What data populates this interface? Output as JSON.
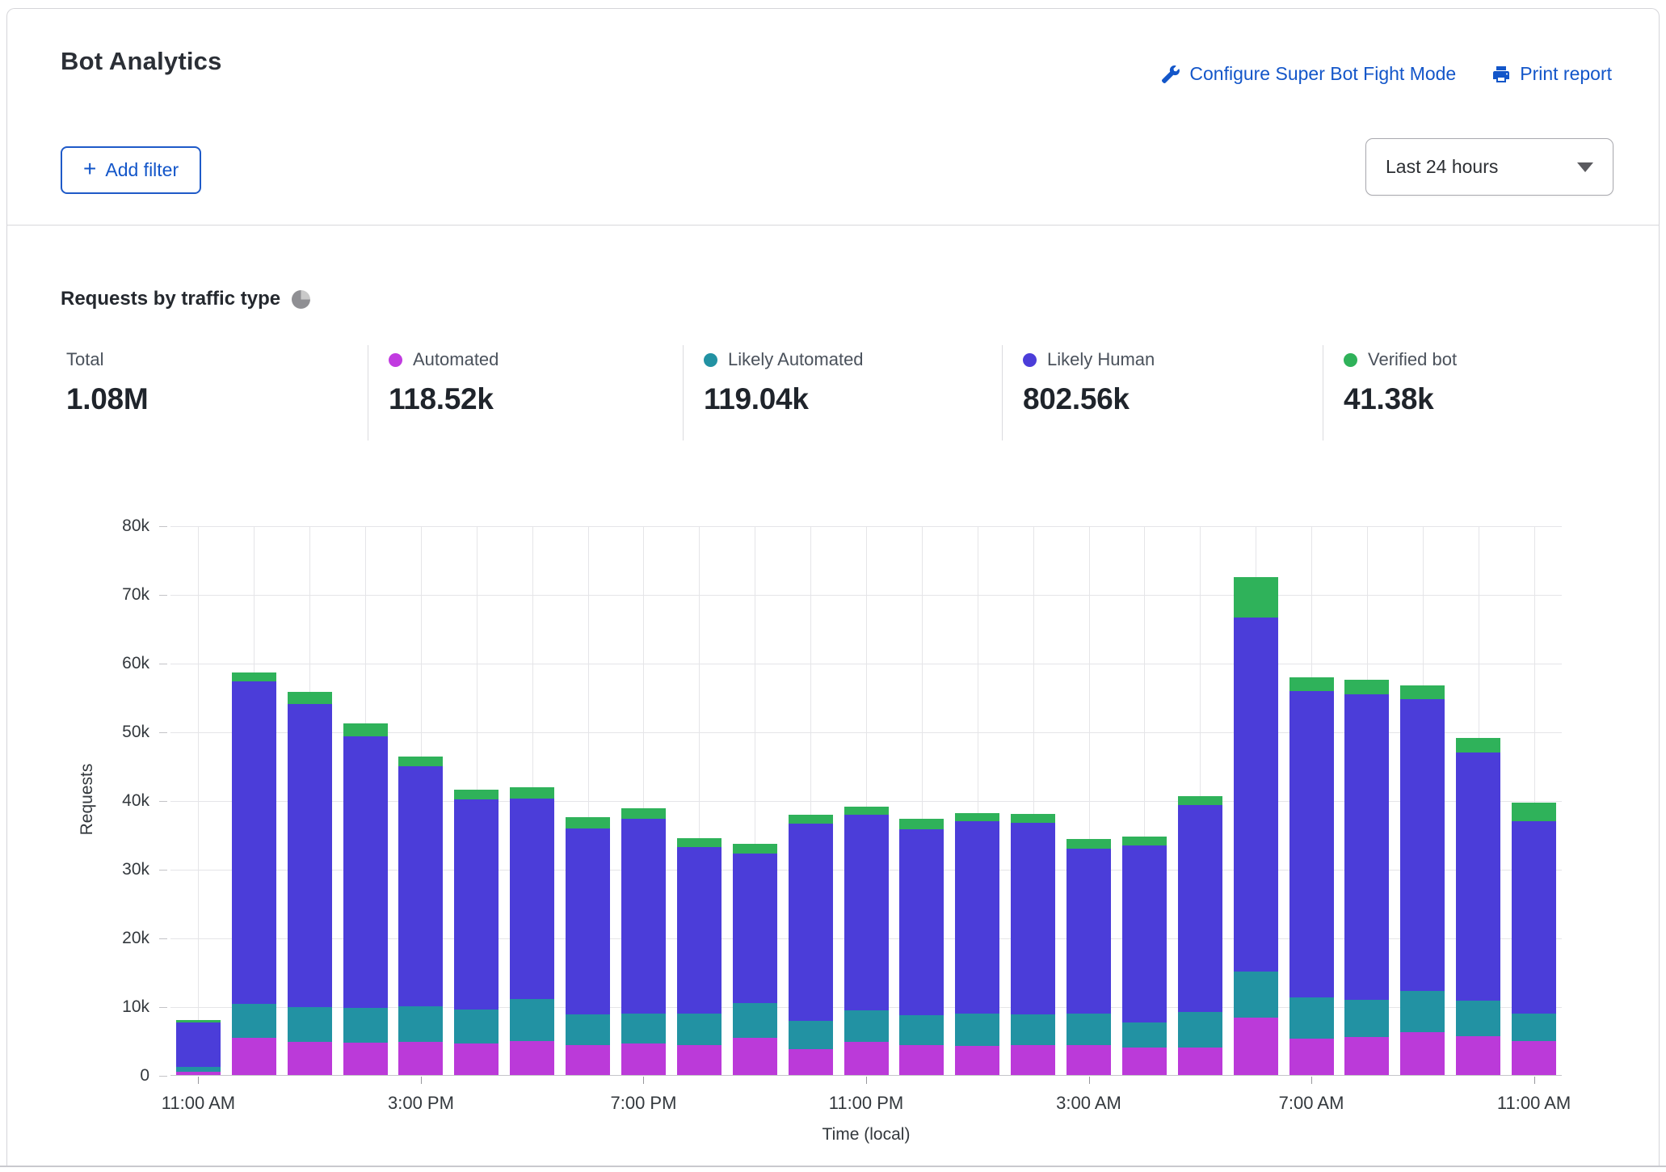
{
  "header": {
    "title": "Bot Analytics",
    "configure_link": "Configure Super Bot Fight Mode",
    "print_link": "Print report",
    "add_filter_plus": "+",
    "add_filter_label": "Add filter",
    "time_range_selected": "Last 24 hours"
  },
  "section": {
    "title": "Requests by traffic type"
  },
  "colors": {
    "accent_blue": "#1356c9",
    "automated": "#bb3ad9",
    "likely_automated": "#2292a3",
    "likely_human": "#4b3dd9",
    "verified_bot": "#2fb25a"
  },
  "stats": [
    {
      "label": "Total",
      "value": "1.08M",
      "color": null
    },
    {
      "label": "Automated",
      "value": "118.52k",
      "color": "#c13be0"
    },
    {
      "label": "Likely Automated",
      "value": "119.04k",
      "color": "#2292a3"
    },
    {
      "label": "Likely Human",
      "value": "802.56k",
      "color": "#4b3dd9"
    },
    {
      "label": "Verified bot",
      "value": "41.38k",
      "color": "#2fb25a"
    }
  ],
  "chart_data": {
    "type": "bar",
    "stacked": true,
    "title": "Requests by traffic type",
    "xlabel": "Time (local)",
    "ylabel": "Requests",
    "unit": "thousands of requests",
    "ylim": [
      0,
      80
    ],
    "grid": true,
    "y_ticks": [
      "0",
      "10k",
      "20k",
      "30k",
      "40k",
      "50k",
      "60k",
      "70k",
      "80k"
    ],
    "categories": [
      "11:00 AM",
      "12:00 PM",
      "1:00 PM",
      "2:00 PM",
      "3:00 PM",
      "4:00 PM",
      "5:00 PM",
      "6:00 PM",
      "7:00 PM",
      "8:00 PM",
      "9:00 PM",
      "10:00 PM",
      "11:00 PM",
      "12:00 AM",
      "1:00 AM",
      "2:00 AM",
      "3:00 AM",
      "4:00 AM",
      "5:00 AM",
      "6:00 AM",
      "7:00 AM",
      "8:00 AM",
      "9:00 AM",
      "10:00 AM",
      "11:00 AM"
    ],
    "x_tick_labels": [
      {
        "index": 0,
        "label": "11:00 AM"
      },
      {
        "index": 4,
        "label": "3:00 PM"
      },
      {
        "index": 8,
        "label": "7:00 PM"
      },
      {
        "index": 12,
        "label": "11:00 PM"
      },
      {
        "index": 16,
        "label": "3:00 AM"
      },
      {
        "index": 20,
        "label": "7:00 AM"
      },
      {
        "index": 24,
        "label": "11:00 AM"
      }
    ],
    "series": [
      {
        "name": "Automated",
        "color": "#bb3ad9",
        "values": [
          0.5,
          5.4,
          4.8,
          4.7,
          4.8,
          4.6,
          4.9,
          4.4,
          4.6,
          4.4,
          5.4,
          3.8,
          4.8,
          4.3,
          4.2,
          4.4,
          4.3,
          4.0,
          4.0,
          8.4,
          5.3,
          5.5,
          6.2,
          5.6,
          4.9
        ]
      },
      {
        "name": "Likely Automated",
        "color": "#2292a3",
        "values": [
          0.7,
          5.0,
          5.1,
          5.1,
          5.2,
          4.9,
          6.2,
          4.4,
          4.4,
          4.5,
          5.1,
          4.1,
          4.6,
          4.4,
          4.7,
          4.4,
          4.6,
          3.6,
          5.2,
          6.7,
          6.0,
          5.5,
          6.0,
          5.2,
          4.0
        ]
      },
      {
        "name": "Likely Human",
        "color": "#4b3dd9",
        "values": [
          6.4,
          46.9,
          44.1,
          39.5,
          35.0,
          30.6,
          29.1,
          27.1,
          28.3,
          24.3,
          21.7,
          28.7,
          28.5,
          27.1,
          28.0,
          27.9,
          24.1,
          25.8,
          30.1,
          51.5,
          44.6,
          44.4,
          42.5,
          36.1,
          28.1
        ]
      },
      {
        "name": "Verified bot",
        "color": "#2fb25a",
        "values": [
          0.4,
          1.3,
          1.8,
          1.9,
          1.4,
          1.4,
          1.7,
          1.6,
          1.5,
          1.3,
          1.4,
          1.3,
          1.2,
          1.5,
          1.2,
          1.3,
          1.4,
          1.3,
          1.3,
          5.9,
          2.0,
          2.1,
          2.0,
          2.2,
          2.6
        ]
      }
    ]
  }
}
